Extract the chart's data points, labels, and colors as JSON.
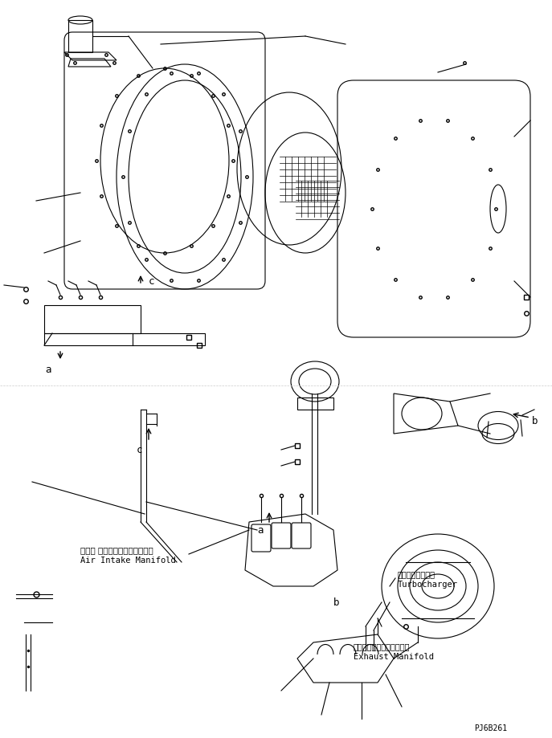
{
  "bg_color": "#ffffff",
  "line_color": "#000000",
  "fig_width": 6.87,
  "fig_height": 9.19,
  "dpi": 100,
  "part_code": "PJ6B261",
  "labels": {
    "a_top": "a",
    "c_top": "c",
    "a_bottom": "a",
    "b_bottom": "b",
    "c_bottom": "c",
    "air_intake_jp": "エアー インテークマニホールド",
    "air_intake_en": "Air Intake Manifold",
    "turbo_jp": "ターボチャージャ",
    "turbo_en": "Turbocharger",
    "exhaust_jp": "エキゾーストマニホールド",
    "exhaust_en": "Exhaust Manifold"
  }
}
